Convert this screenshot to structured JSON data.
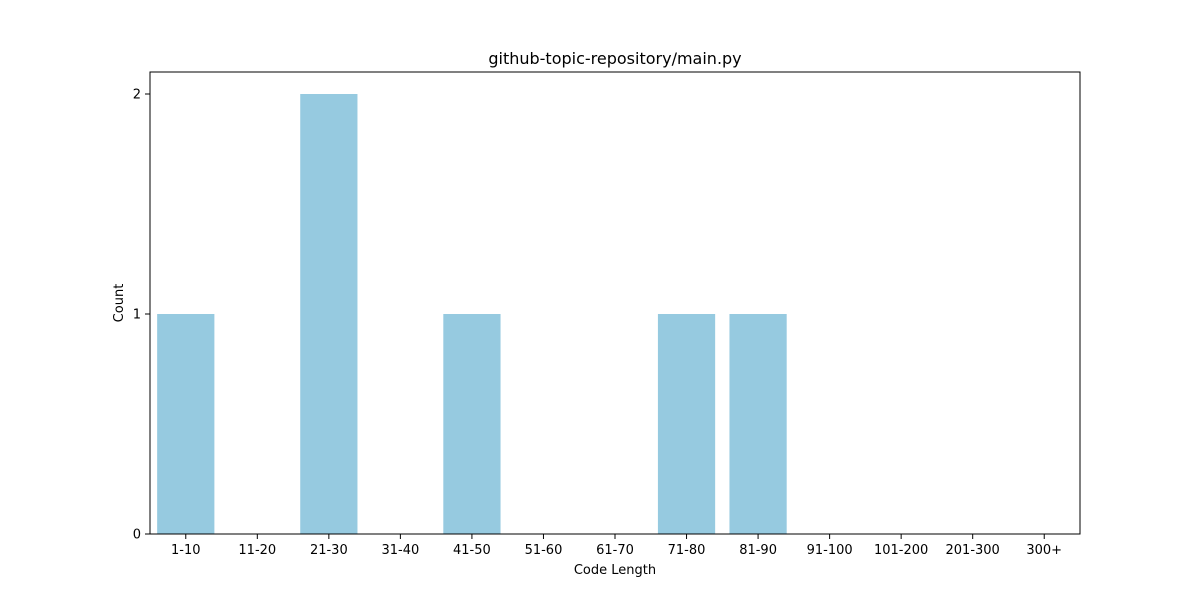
{
  "chart_data": {
    "type": "bar",
    "title": "github-topic-repository/main.py",
    "xlabel": "Code Length",
    "ylabel": "Count",
    "categories": [
      "1-10",
      "11-20",
      "21-30",
      "31-40",
      "41-50",
      "51-60",
      "61-70",
      "71-80",
      "81-90",
      "91-100",
      "101-200",
      "201-300",
      "300+"
    ],
    "values": [
      1,
      0,
      2,
      0,
      1,
      0,
      0,
      1,
      1,
      0,
      0,
      0,
      0
    ],
    "ylim": [
      0,
      2.1
    ],
    "yticks": [
      0,
      1,
      2
    ],
    "grid": false,
    "legend": "none",
    "bar_color": "#96CAE0"
  }
}
